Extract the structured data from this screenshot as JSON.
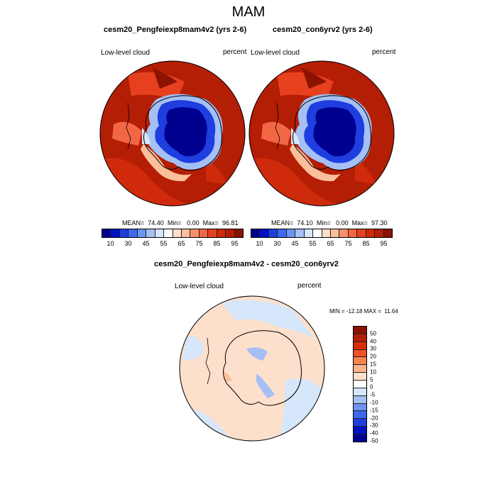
{
  "title": "MAM",
  "panels": [
    {
      "id": "left",
      "title": "cesm20_Pengfeiexp8mam4v2 (yrs 2-6)",
      "variable": "Low-level cloud",
      "units": "percent",
      "stats_mean_label": "MEAN=",
      "stats_mean": "74.40",
      "stats_min_label": "Min=",
      "stats_min": "0.00",
      "stats_max_label": "Max=",
      "stats_max": "96.81"
    },
    {
      "id": "right",
      "title": "cesm20_con6yrv2 (yrs 2-6)",
      "variable": "Low-level cloud",
      "units": "percent",
      "stats_mean_label": "MEAN=",
      "stats_mean": "74.10",
      "stats_min_label": "Min=",
      "stats_min": "0.00",
      "stats_max_label": "Max=",
      "stats_max": "97.30"
    }
  ],
  "diff_panel": {
    "title": "cesm20_Pengfeiexp8mam4v2 - cesm20_con6yrv2",
    "variable": "Low-level cloud",
    "units": "percent",
    "minmax_text": "MIN = -12.18 MAX =  11.64"
  },
  "colorbar_abs": {
    "colors": [
      "#00008f",
      "#0010c4",
      "#1e3ee0",
      "#3c68f0",
      "#6e94f2",
      "#a4c0f5",
      "#d6e6fb",
      "#ffffff",
      "#fde0cc",
      "#fcbf9c",
      "#f8906a",
      "#f26644",
      "#e6401f",
      "#cf2a0c",
      "#b41e04",
      "#8c1300"
    ],
    "tick_labels": [
      "10",
      "30",
      "45",
      "55",
      "65",
      "75",
      "85",
      "95"
    ]
  },
  "colorbar_diff": {
    "colors": [
      "#8c1300",
      "#b41e04",
      "#d92e0c",
      "#f04f26",
      "#f7834f",
      "#fbb48d",
      "#fde0cc",
      "#ffffff",
      "#d6e6fb",
      "#a4c0f5",
      "#6e94f2",
      "#3c68f0",
      "#1e3ee0",
      "#0010c4",
      "#00008f"
    ],
    "tick_labels": [
      "50",
      "40",
      "30",
      "20",
      "15",
      "10",
      "5",
      "0",
      "-5",
      "-10",
      "-15",
      "-20",
      "-30",
      "-40",
      "-50"
    ]
  }
}
